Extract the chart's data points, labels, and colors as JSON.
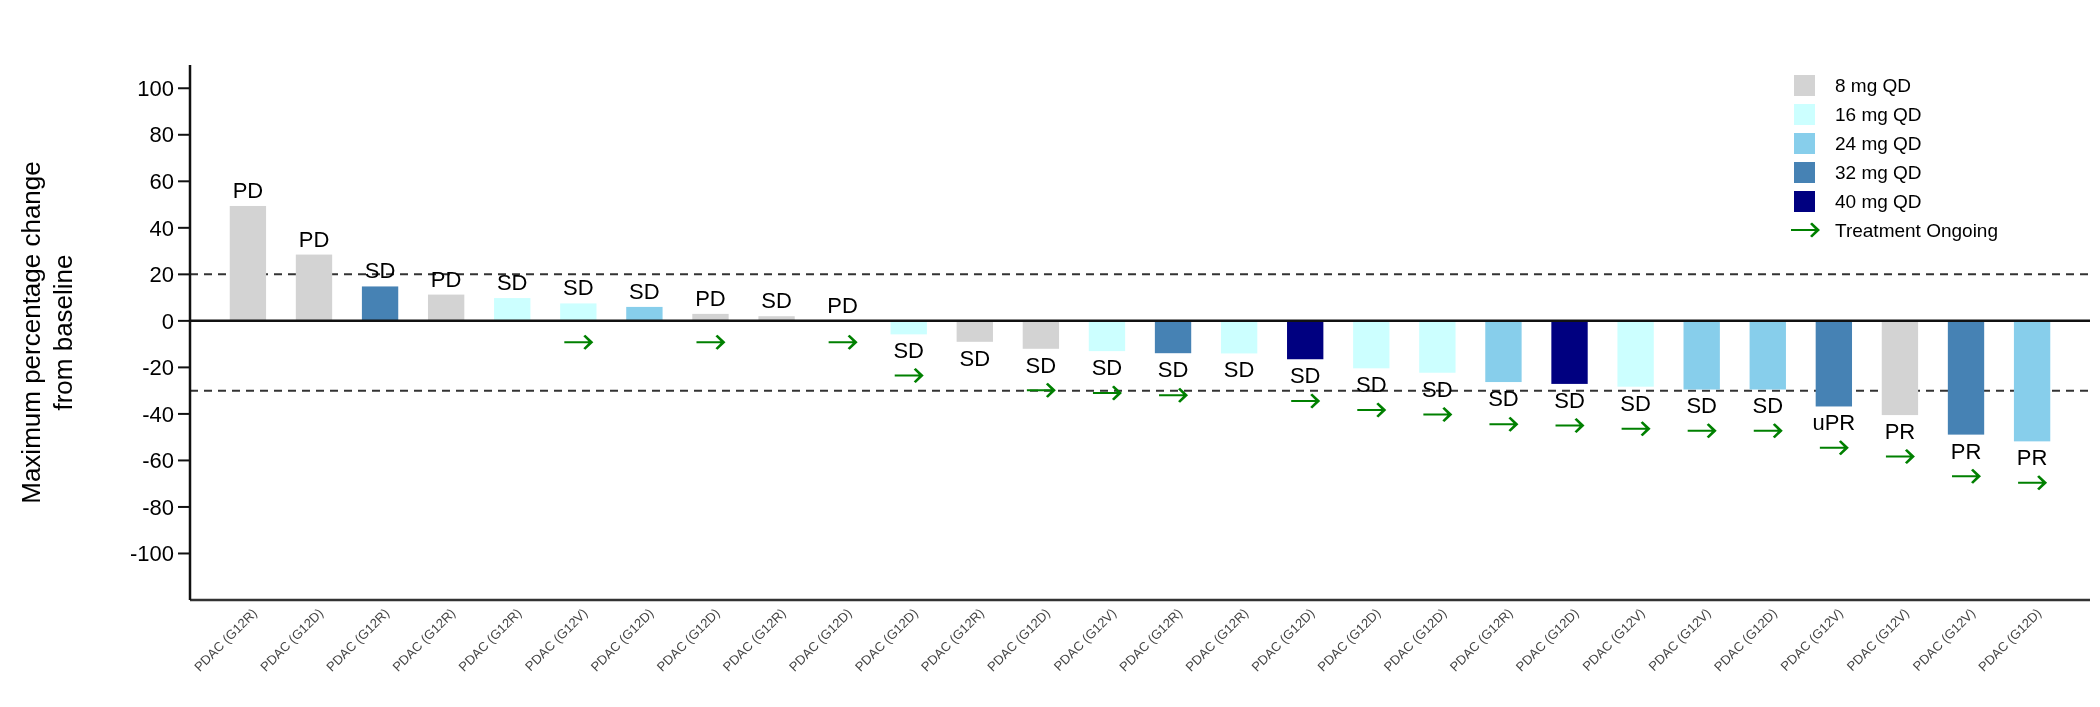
{
  "chart_data": {
    "type": "bar",
    "ylabel": "Maximum percentage change\nfrom baseline",
    "categories": [
      "PDAC (G12R)",
      "PDAC (G12D)",
      "PDAC (G12R)",
      "PDAC (G12R)",
      "PDAC (G12R)",
      "PDAC (G12V)",
      "PDAC (G12D)",
      "PDAC (G12D)",
      "PDAC (G12R)",
      "PDAC (G12D)",
      "PDAC (G12D)",
      "PDAC (G12R)",
      "PDAC (G12D)",
      "PDAC (G12V)",
      "PDAC (G12R)",
      "PDAC (G12R)",
      "PDAC (G12D)",
      "PDAC (G12D)",
      "PDAC (G12D)",
      "PDAC (G12R)",
      "PDAC (G12D)",
      "PDAC (G12V)",
      "PDAC (G12V)",
      "PDAC (G12D)",
      "PDAC (G12V)",
      "PDAC (G12V)",
      "PDAC (G12V)",
      "PDAC (G12D)"
    ],
    "series": [
      {
        "name": "8 mg QD",
        "color": "#d3d3d3",
        "values": [
          49.4,
          28.5,
          null,
          11.3,
          null,
          null,
          null,
          3,
          2,
          0,
          null,
          -9,
          -12,
          null,
          null,
          null,
          null,
          null,
          null,
          null,
          null,
          null,
          null,
          null,
          null,
          -40.5,
          null,
          null
        ],
        "value_labels": [
          "PD",
          "PD",
          null,
          "PD",
          null,
          null,
          null,
          "PD",
          "SD",
          "PD",
          null,
          "SD",
          "SD",
          null,
          null,
          null,
          null,
          null,
          null,
          null,
          null,
          null,
          null,
          null,
          null,
          "PR",
          null,
          null
        ]
      },
      {
        "name": "16 mg QD",
        "color": "#ccffff",
        "values": [
          null,
          null,
          null,
          null,
          9.8,
          7.5,
          null,
          null,
          null,
          null,
          -5.8,
          null,
          null,
          -13,
          null,
          -14,
          null,
          -20.4,
          -22.3,
          null,
          null,
          -28.3,
          null,
          null,
          null,
          null,
          null,
          null
        ],
        "value_labels": [
          null,
          null,
          null,
          null,
          "SD",
          "SD",
          null,
          null,
          null,
          null,
          "SD",
          null,
          null,
          "SD",
          null,
          "SD",
          null,
          "SD",
          "SD",
          null,
          null,
          "SD",
          null,
          null,
          null,
          null,
          null,
          null
        ]
      },
      {
        "name": "24 mg QD",
        "color": "#87ceeb",
        "values": [
          null,
          null,
          null,
          null,
          null,
          null,
          6,
          null,
          null,
          null,
          null,
          null,
          null,
          null,
          null,
          null,
          null,
          null,
          null,
          -26.3,
          null,
          null,
          -29.5,
          -29.5,
          null,
          null,
          null,
          -51.8
        ],
        "value_labels": [
          null,
          null,
          null,
          null,
          null,
          null,
          "SD",
          null,
          null,
          null,
          null,
          null,
          null,
          null,
          null,
          null,
          null,
          null,
          null,
          "SD",
          null,
          null,
          "SD",
          "SD",
          null,
          null,
          null,
          "PR"
        ]
      },
      {
        "name": "32 mg QD",
        "color": "#4682b4",
        "values": [
          null,
          null,
          14.8,
          null,
          null,
          null,
          null,
          null,
          null,
          null,
          null,
          null,
          null,
          null,
          -13.9,
          null,
          null,
          null,
          null,
          null,
          null,
          null,
          null,
          null,
          -36.8,
          null,
          -48.9,
          null
        ],
        "value_labels": [
          null,
          null,
          "SD",
          null,
          null,
          null,
          null,
          null,
          null,
          null,
          null,
          null,
          null,
          null,
          "SD",
          null,
          null,
          null,
          null,
          null,
          null,
          null,
          null,
          null,
          "uPR",
          null,
          "PR",
          null
        ]
      },
      {
        "name": "40 mg QD",
        "color": "#000080",
        "values": [
          null,
          null,
          null,
          null,
          null,
          null,
          null,
          null,
          null,
          null,
          null,
          null,
          null,
          null,
          null,
          null,
          -16.5,
          null,
          null,
          null,
          -27.1,
          null,
          null,
          null,
          null,
          null,
          null,
          null
        ],
        "value_labels": [
          null,
          null,
          null,
          null,
          null,
          null,
          null,
          null,
          null,
          null,
          null,
          null,
          null,
          null,
          null,
          null,
          "SD",
          null,
          null,
          null,
          "SD",
          null,
          null,
          null,
          null,
          null,
          null,
          null
        ]
      },
      {
        "name": "Treatment Ongoing",
        "type": "scatter",
        "color": "#008000",
        "values": [
          null,
          null,
          null,
          null,
          null,
          -9.2,
          null,
          -9.2,
          null,
          -9.2,
          -23.5,
          null,
          -29.8,
          -31,
          -32,
          null,
          -34.4,
          -38.3,
          -40.2,
          -44.4,
          -45,
          -46.4,
          -47.2,
          -47.2,
          -54.5,
          -58.3,
          -66.8,
          -69.6
        ]
      }
    ],
    "ylim": [
      -120,
      110
    ],
    "yticks": [
      -100,
      -80,
      -60,
      -40,
      -20,
      0,
      20,
      40,
      60,
      80,
      100
    ],
    "ref_lines": [
      {
        "axis": "y",
        "value": 20,
        "line_style": "dashed",
        "color": "#333333"
      },
      {
        "axis": "y",
        "value": -30,
        "line_style": "dashed",
        "color": "#333333"
      }
    ],
    "grid": false,
    "legend": "top right"
  }
}
